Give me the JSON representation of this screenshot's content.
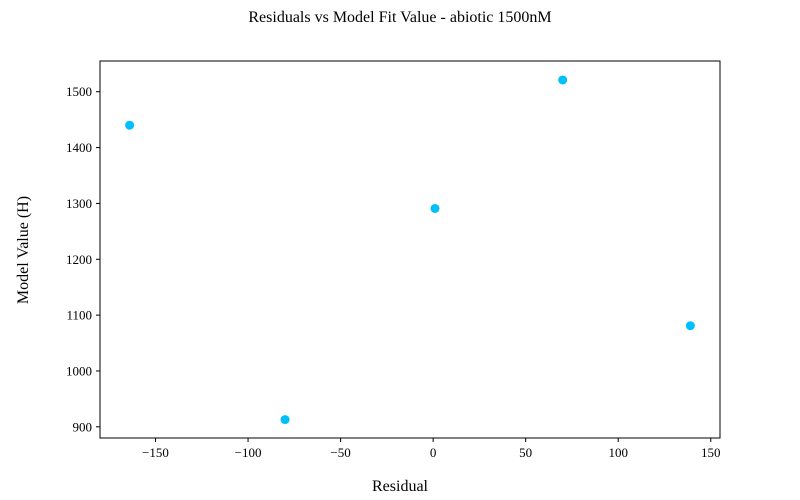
{
  "chart_data": {
    "type": "scatter",
    "title": "Residuals vs Model Fit Value  - abiotic 1500nM",
    "xlabel": "Residual",
    "ylabel": "Model Value (H)",
    "xlim": [
      -180,
      155
    ],
    "ylim": [
      880,
      1555
    ],
    "xticks": [
      -150,
      -100,
      -50,
      0,
      50,
      100,
      150
    ],
    "xtick_labels": [
      "−150",
      "−100",
      "−50",
      "0",
      "50",
      "100",
      "150"
    ],
    "yticks": [
      900,
      1000,
      1100,
      1200,
      1300,
      1400,
      1500
    ],
    "ytick_labels": [
      "900",
      "1000",
      "1100",
      "1200",
      "1300",
      "1400",
      "1500"
    ],
    "grid": false,
    "marker_color": "#00bfff",
    "points": [
      {
        "x": -164,
        "y": 1440
      },
      {
        "x": -80,
        "y": 913
      },
      {
        "x": 1,
        "y": 1291
      },
      {
        "x": 70,
        "y": 1521
      },
      {
        "x": 139,
        "y": 1081
      }
    ]
  }
}
